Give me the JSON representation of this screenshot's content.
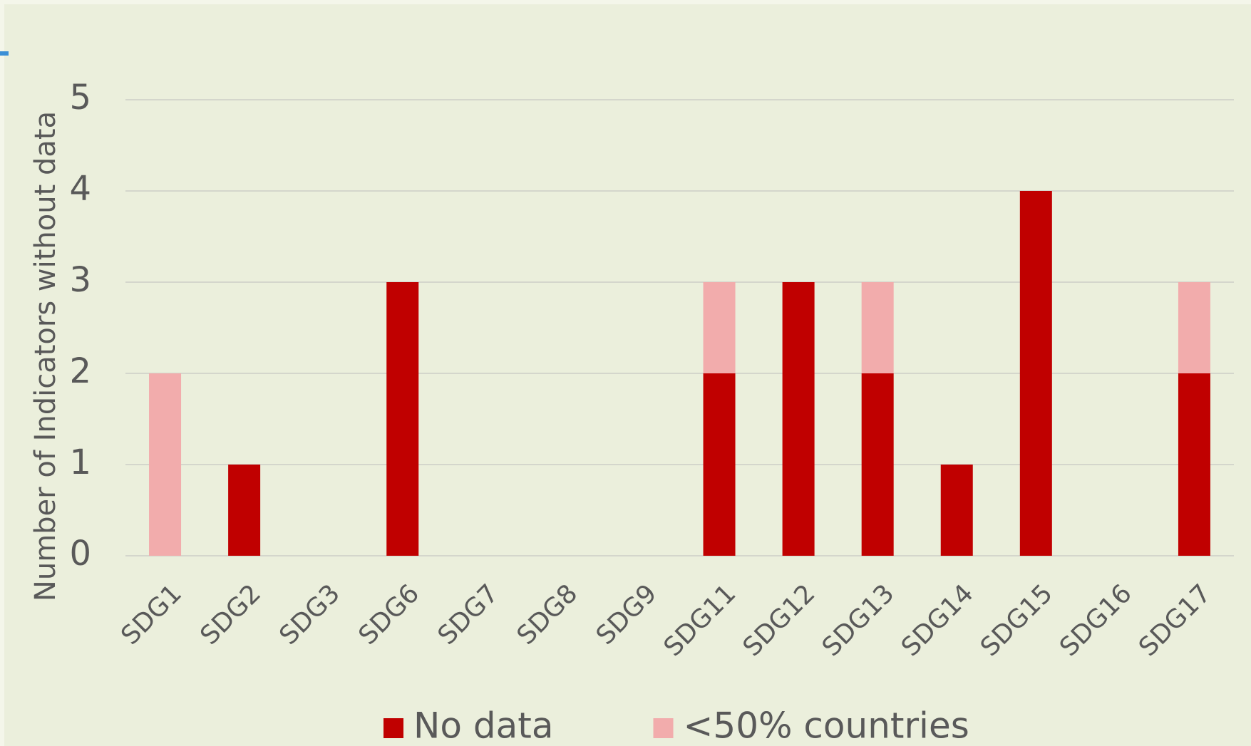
{
  "chart_data": {
    "type": "stacked_bar",
    "y_label": "Number of Indicators without data",
    "categories": [
      "SDG1",
      "SDG2",
      "SDG3",
      "SDG6",
      "SDG7",
      "SDG8",
      "SDG9",
      "SDG11",
      "SDG12",
      "SDG13",
      "SDG14",
      "SDG15",
      "SDG16",
      "SDG17"
    ],
    "series": [
      {
        "name": "No data",
        "color": "#c00000",
        "values": [
          0,
          1,
          0,
          3,
          0,
          0,
          0,
          2,
          3,
          2,
          1,
          4,
          0,
          2
        ]
      },
      {
        "name": "<50% countries",
        "color": "#f2acac",
        "values": [
          2,
          0,
          0,
          0,
          0,
          0,
          0,
          1,
          0,
          1,
          0,
          0,
          0,
          1
        ]
      }
    ],
    "ylim": [
      0,
      5
    ],
    "yticks": [
      0,
      1,
      2,
      3,
      4,
      5
    ],
    "grid": true,
    "legend": "bottom"
  }
}
